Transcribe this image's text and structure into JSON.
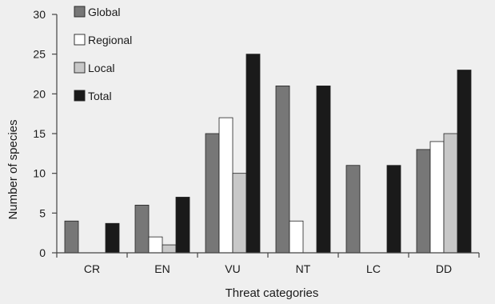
{
  "chart_data": {
    "type": "bar",
    "xlabel": "Threat categories",
    "ylabel": "Number of species",
    "ylim": [
      0,
      30
    ],
    "yticks": [
      0,
      5,
      10,
      15,
      20,
      25,
      30
    ],
    "categories": [
      "CR",
      "EN",
      "VU",
      "NT",
      "LC",
      "DD"
    ],
    "series": [
      {
        "name": "Global",
        "color": "#777777",
        "values": [
          4,
          6,
          15,
          21,
          11,
          13
        ]
      },
      {
        "name": "Regional",
        "color": "#ffffff",
        "values": [
          0,
          2,
          17,
          4,
          0,
          14
        ]
      },
      {
        "name": "Local",
        "color": "#c8c8c8",
        "values": [
          0,
          1,
          10,
          0,
          0,
          15
        ]
      },
      {
        "name": "Total",
        "color": "#1a1a1a",
        "values": [
          3.7,
          7,
          25,
          21,
          11,
          23
        ]
      }
    ],
    "legend_position": "top-left",
    "grid": false
  }
}
